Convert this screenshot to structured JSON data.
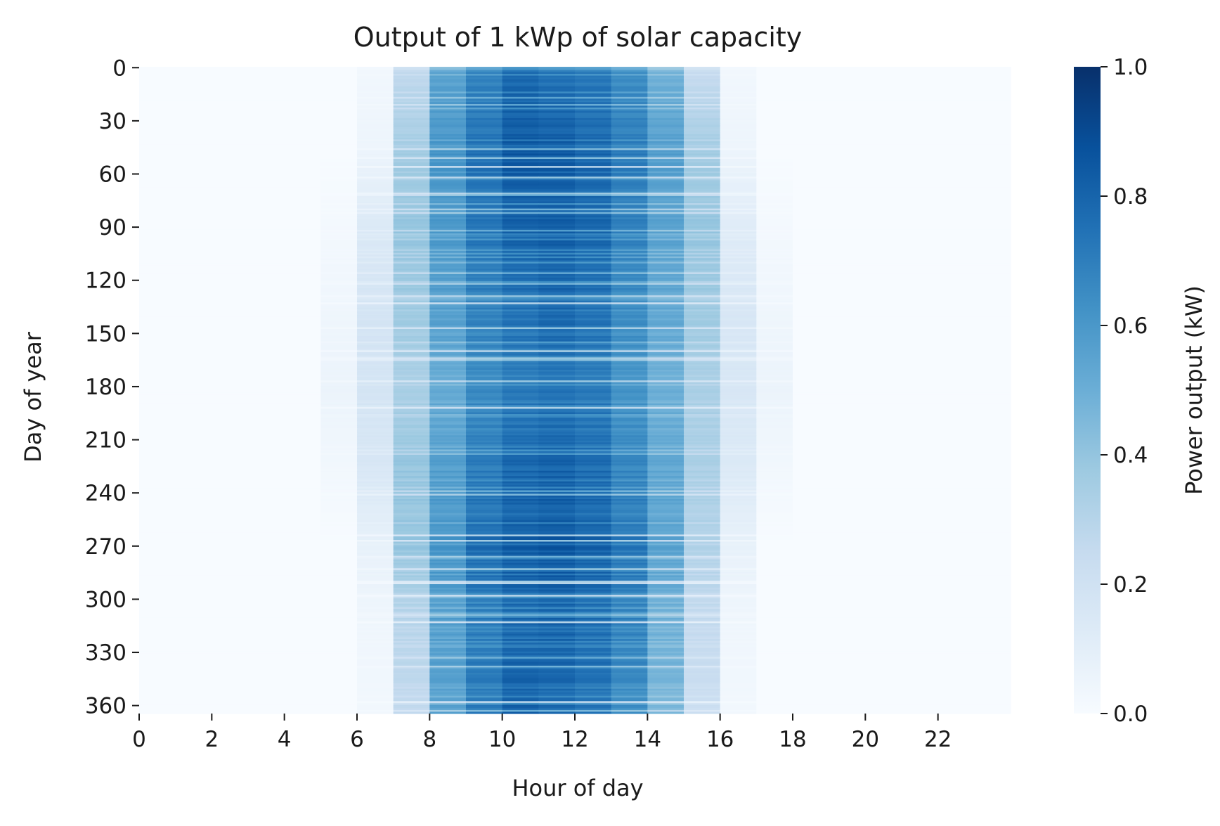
{
  "chart_data": {
    "type": "heatmap",
    "title": "Output of 1 kWp of solar capacity",
    "xlabel": "Hour of day",
    "ylabel": "Day of year",
    "x_ticks": [
      0,
      2,
      4,
      6,
      8,
      10,
      12,
      14,
      16,
      18,
      20,
      22
    ],
    "y_ticks": [
      0,
      30,
      60,
      90,
      120,
      150,
      180,
      210,
      240,
      270,
      300,
      330,
      360
    ],
    "x_range": [
      0,
      24
    ],
    "y_range": [
      0,
      365
    ],
    "colorbar": {
      "label": "Power output (kW)",
      "ticks": [
        "0.0",
        "0.2",
        "0.4",
        "0.6",
        "0.8",
        "1.0"
      ],
      "range": [
        0,
        1
      ]
    },
    "colormap": [
      "#f7fbff",
      "#deebf7",
      "#c6dbef",
      "#9ecae1",
      "#6baed6",
      "#4292c6",
      "#2171b5",
      "#08519c",
      "#08306b"
    ],
    "profile_days": [
      0,
      45,
      90,
      135,
      180,
      225,
      270,
      315,
      364
    ],
    "profile_hours": [
      5,
      6,
      7,
      8,
      9,
      10,
      11,
      12,
      13,
      14,
      15,
      16,
      17
    ],
    "profile_kw": [
      [
        0.0,
        0.03,
        0.26,
        0.55,
        0.68,
        0.78,
        0.74,
        0.72,
        0.64,
        0.48,
        0.24,
        0.03,
        0.0
      ],
      [
        0.0,
        0.05,
        0.36,
        0.62,
        0.76,
        0.86,
        0.85,
        0.8,
        0.72,
        0.58,
        0.36,
        0.05,
        0.0
      ],
      [
        0.02,
        0.14,
        0.4,
        0.6,
        0.74,
        0.82,
        0.83,
        0.8,
        0.7,
        0.56,
        0.4,
        0.12,
        0.02
      ],
      [
        0.04,
        0.18,
        0.38,
        0.58,
        0.7,
        0.76,
        0.8,
        0.76,
        0.66,
        0.54,
        0.38,
        0.16,
        0.04
      ],
      [
        0.06,
        0.18,
        0.34,
        0.52,
        0.66,
        0.72,
        0.74,
        0.72,
        0.62,
        0.5,
        0.34,
        0.16,
        0.06
      ],
      [
        0.03,
        0.16,
        0.4,
        0.58,
        0.72,
        0.8,
        0.82,
        0.78,
        0.68,
        0.54,
        0.34,
        0.14,
        0.03
      ],
      [
        0.0,
        0.08,
        0.4,
        0.62,
        0.78,
        0.84,
        0.86,
        0.82,
        0.74,
        0.56,
        0.32,
        0.08,
        0.0
      ],
      [
        0.0,
        0.04,
        0.3,
        0.58,
        0.72,
        0.8,
        0.82,
        0.78,
        0.7,
        0.5,
        0.26,
        0.04,
        0.0
      ],
      [
        0.0,
        0.03,
        0.26,
        0.56,
        0.72,
        0.82,
        0.78,
        0.74,
        0.64,
        0.46,
        0.22,
        0.03,
        0.0
      ]
    ]
  }
}
